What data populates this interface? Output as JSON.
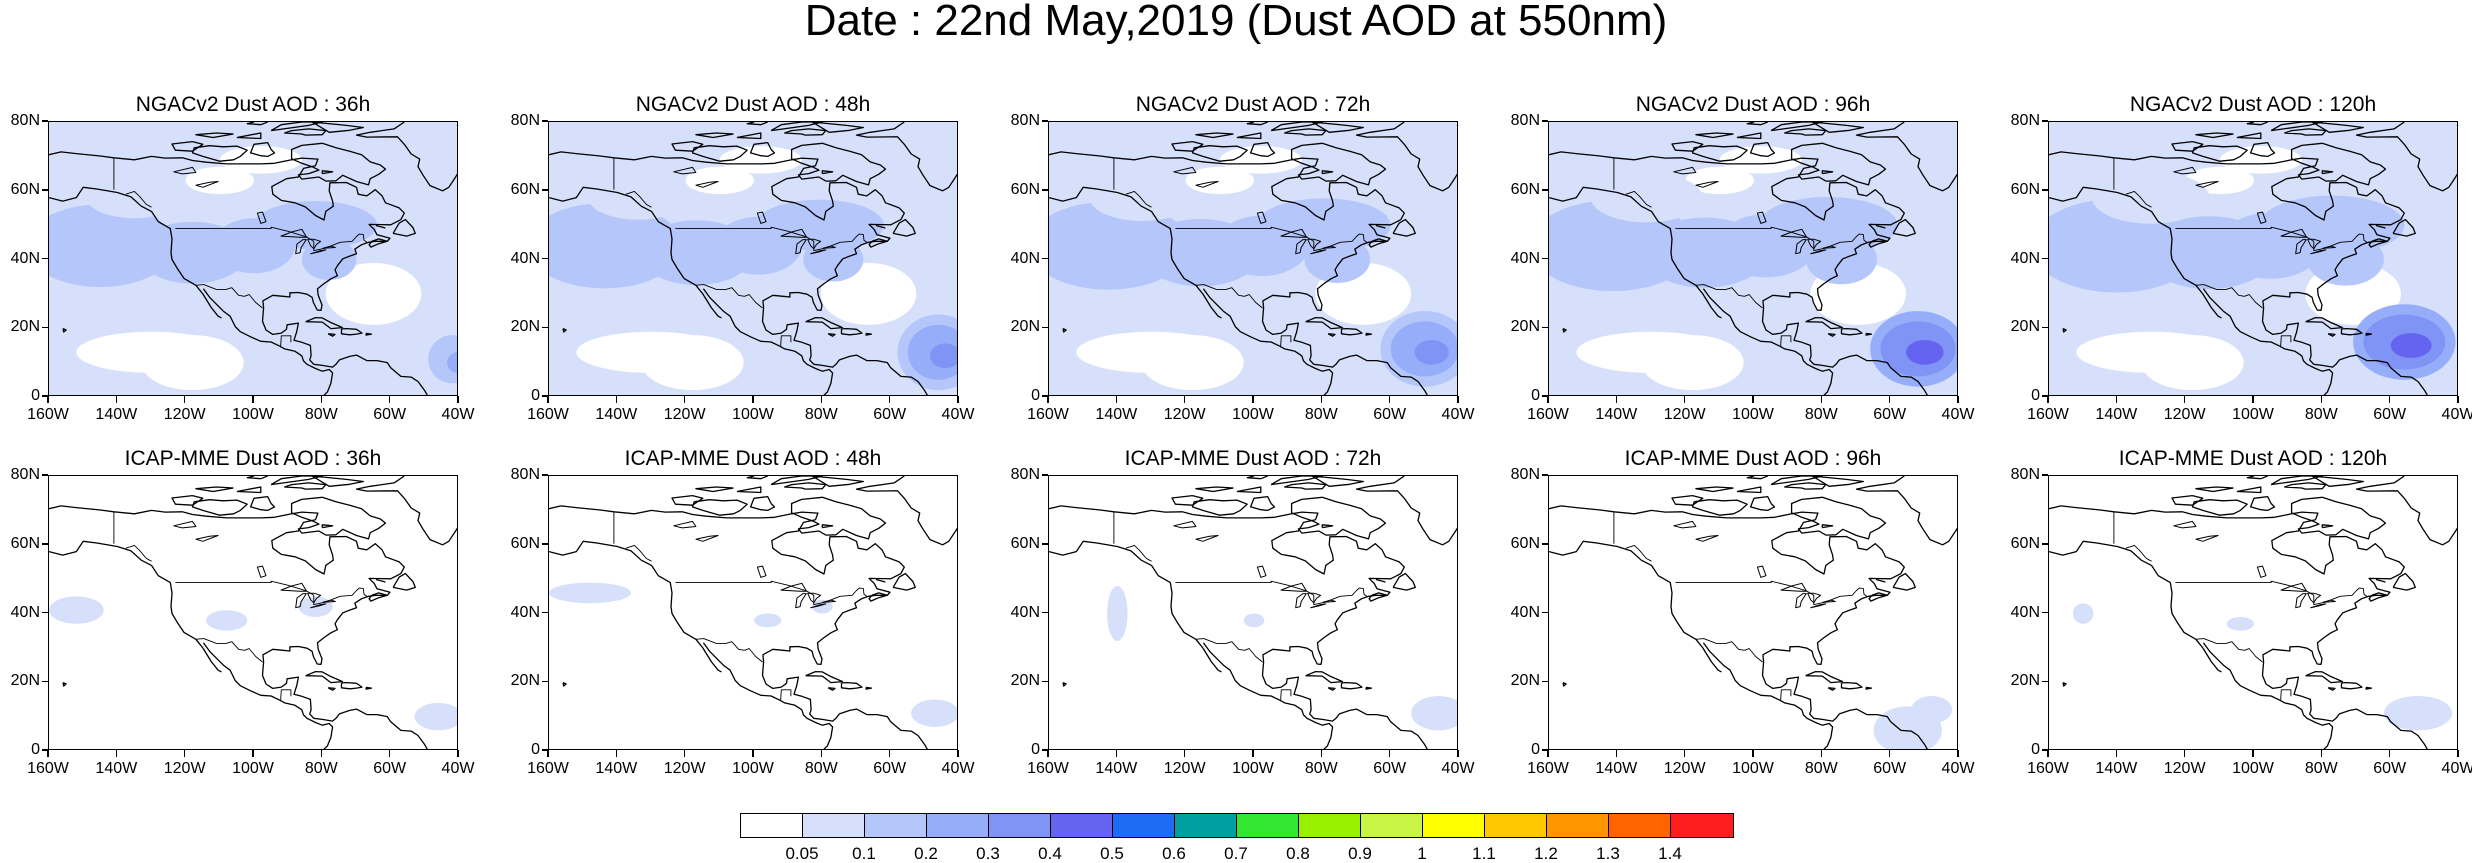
{
  "title": "Date : 22nd May,2019 (Dust AOD at 550nm)",
  "panels": [
    {
      "label": "NGACv2 Dust AOD : 36h",
      "model": "NGACv2",
      "lead_hours": 36
    },
    {
      "label": "NGACv2 Dust AOD : 48h",
      "model": "NGACv2",
      "lead_hours": 48
    },
    {
      "label": "NGACv2 Dust AOD : 72h",
      "model": "NGACv2",
      "lead_hours": 72
    },
    {
      "label": "NGACv2 Dust AOD : 96h",
      "model": "NGACv2",
      "lead_hours": 96
    },
    {
      "label": "NGACv2 Dust AOD : 120h",
      "model": "NGACv2",
      "lead_hours": 120
    },
    {
      "label": "ICAP-MME Dust AOD : 36h",
      "model": "ICAP-MME",
      "lead_hours": 36
    },
    {
      "label": "ICAP-MME Dust AOD : 48h",
      "model": "ICAP-MME",
      "lead_hours": 48
    },
    {
      "label": "ICAP-MME Dust AOD : 72h",
      "model": "ICAP-MME",
      "lead_hours": 72
    },
    {
      "label": "ICAP-MME Dust AOD : 96h",
      "model": "ICAP-MME",
      "lead_hours": 96
    },
    {
      "label": "ICAP-MME Dust AOD : 120h",
      "model": "ICAP-MME",
      "lead_hours": 120
    }
  ],
  "lat_labels": [
    "80N",
    "60N",
    "40N",
    "20N",
    "0"
  ],
  "lon_labels": [
    "160W",
    "140W",
    "120W",
    "100W",
    "80W",
    "60W",
    "40W"
  ],
  "colorbar": {
    "labels": [
      "0.05",
      "0.1",
      "0.2",
      "0.3",
      "0.4",
      "0.5",
      "0.6",
      "0.7",
      "0.8",
      "0.9",
      "1",
      "1.1",
      "1.2",
      "1.3",
      "1.4"
    ],
    "colors": [
      "#ffffff",
      "#d6e0fa",
      "#b4c6fa",
      "#96aefa",
      "#8094f5",
      "#6464f0",
      "#1e6cf5",
      "#00a0a0",
      "#32e632",
      "#96f000",
      "#c8f546",
      "#ffff00",
      "#ffc800",
      "#ff9600",
      "#ff6400",
      "#ff1e1e"
    ]
  }
}
